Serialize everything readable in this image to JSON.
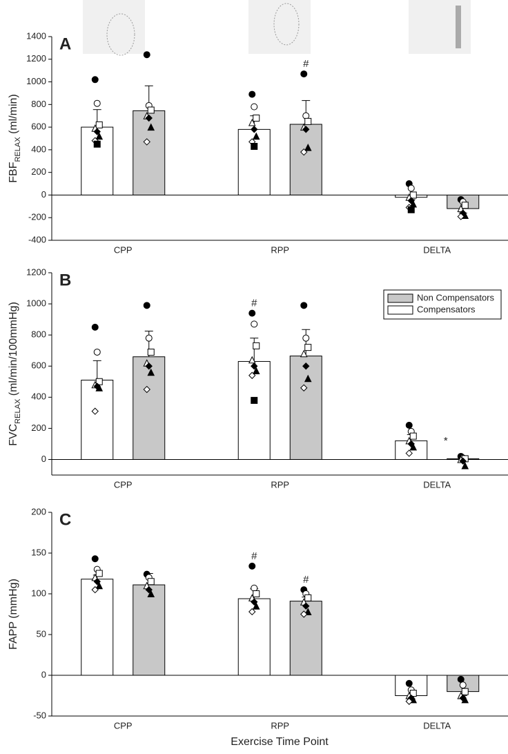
{
  "chart_data": [
    {
      "type": "bar",
      "label": "A",
      "y_label": [
        "FBF",
        "RELAX",
        " (ml/min)"
      ],
      "categories": [
        "CPP",
        "RPP",
        "DELTA"
      ],
      "ylim": [
        -400,
        1400
      ],
      "yticks": [
        -400,
        -200,
        0,
        200,
        400,
        600,
        800,
        1000,
        1200,
        1400
      ],
      "series": [
        {
          "color": "#ffffff",
          "values": [
            600,
            580,
            -20
          ],
          "errors": [
            155,
            120,
            20
          ],
          "annotations": [
            null,
            null,
            null
          ],
          "points": [
            [
              1020,
              810,
              620,
              590,
              560,
              520,
              480,
              450
            ],
            [
              890,
              780,
              680,
              640,
              580,
              520,
              470,
              430
            ],
            [
              100,
              60,
              0,
              -20,
              -50,
              -80,
              -110,
              -130
            ]
          ]
        },
        {
          "color": "#c8c8c8",
          "values": [
            745,
            625,
            -120
          ],
          "errors": [
            220,
            210,
            40
          ],
          "annotations": [
            null,
            "#",
            null
          ],
          "points": [
            [
              1240,
              790,
              750,
              700,
              680,
              600,
              470
            ],
            [
              1070,
              700,
              650,
              600,
              580,
              420,
              380
            ],
            [
              -40,
              -60,
              -90,
              -120,
              -160,
              -180,
              -190
            ]
          ]
        }
      ]
    },
    {
      "type": "bar",
      "label": "B",
      "y_label": [
        "FVC",
        "RELAX",
        " (ml/min/100mmHg)"
      ],
      "categories": [
        "CPP",
        "RPP",
        "DELTA"
      ],
      "ylim": [
        -100,
        1200
      ],
      "yticks": [
        0,
        200,
        400,
        600,
        800,
        1000,
        1200
      ],
      "legend": true,
      "series": [
        {
          "name": "Compensators",
          "color": "#ffffff",
          "values": [
            510,
            630,
            120
          ],
          "errors": [
            125,
            150,
            40
          ],
          "annotations": [
            null,
            "#",
            null
          ],
          "points": [
            [
              850,
              690,
              500,
              480,
              470,
              460,
              310
            ],
            [
              940,
              870,
              730,
              640,
              600,
              570,
              540,
              380
            ],
            [
              220,
              180,
              150,
              120,
              100,
              80,
              40
            ]
          ]
        },
        {
          "name": "Non Compensators",
          "color": "#c8c8c8",
          "values": [
            660,
            665,
            5
          ],
          "errors": [
            165,
            170,
            10
          ],
          "annotations": [
            null,
            null,
            "*"
          ],
          "points": [
            [
              990,
              780,
              690,
              620,
              600,
              560,
              450
            ],
            [
              990,
              780,
              720,
              680,
              600,
              520,
              460
            ],
            [
              20,
              10,
              5,
              0,
              -10,
              -40
            ]
          ]
        }
      ]
    },
    {
      "type": "bar",
      "label": "C",
      "y_label": [
        "FAPP (mmHg)"
      ],
      "x_label": "Exercise Time Point",
      "categories": [
        "CPP",
        "RPP",
        "DELTA"
      ],
      "ylim": [
        -50,
        200
      ],
      "yticks": [
        -50,
        0,
        50,
        100,
        150,
        200
      ],
      "series": [
        {
          "color": "#ffffff",
          "values": [
            118,
            94,
            -25
          ],
          "errors": [
            5,
            12,
            4
          ],
          "annotations": [
            null,
            "#",
            null
          ],
          "points": [
            [
              143,
              130,
              125,
              120,
              115,
              110,
              105
            ],
            [
              134,
              107,
              100,
              95,
              90,
              85,
              78
            ],
            [
              -10,
              -18,
              -22,
              -25,
              -28,
              -30,
              -32
            ]
          ]
        },
        {
          "color": "#c8c8c8",
          "values": [
            111,
            91,
            -20
          ],
          "errors": [
            14,
            5,
            5
          ],
          "annotations": [
            null,
            "#",
            null
          ],
          "points": [
            [
              124,
              120,
              115,
              110,
              105,
              100
            ],
            [
              105,
              100,
              95,
              90,
              85,
              78,
              75
            ],
            [
              -5,
              -12,
              -20,
              -25,
              -28,
              -30
            ]
          ]
        }
      ]
    }
  ]
}
